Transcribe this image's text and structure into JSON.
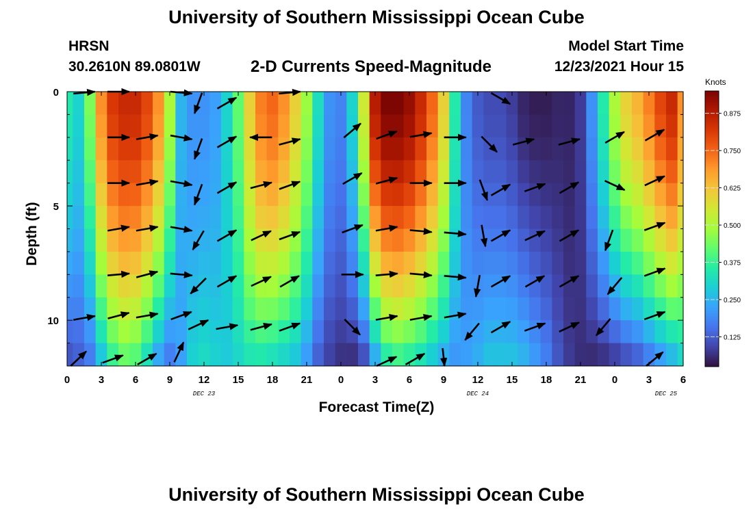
{
  "header": {
    "title": "University of Southern Mississippi Ocean Cube",
    "station": "HRSN",
    "coords": "30.2610N  89.0801W",
    "plot_title": "2-D Currents Speed-Magnitude",
    "model_label": "Model Start Time",
    "model_time": "12/23/2021 Hour 15"
  },
  "footer": {
    "title": "University of Southern Mississippi Ocean Cube"
  },
  "colors": {
    "scale": [
      "#30123b",
      "#4145ab",
      "#4675ed",
      "#39a2fc",
      "#1bcfd4",
      "#24eca6",
      "#61fc6c",
      "#a4fc3b",
      "#d1e834",
      "#f3c63a",
      "#fe9b2d",
      "#f36315",
      "#d93806",
      "#b11901",
      "#7a0402"
    ]
  },
  "chart_data": {
    "type": "heatmap",
    "title": "2-D Currents Speed-Magnitude",
    "xlabel": "Forecast Time(Z)",
    "ylabel": "Depth (ft)",
    "x_tick_labels": [
      "0",
      "3",
      "6",
      "9",
      "12",
      "15",
      "18",
      "21",
      "0",
      "3",
      "6",
      "9",
      "12",
      "15",
      "18",
      "21",
      "0",
      "3",
      "6"
    ],
    "x_start_hour": 0,
    "x_end_hour": 54,
    "date_labels": [
      {
        "label": "DEC 23",
        "hour": 12
      },
      {
        "label": "DEC 24",
        "hour": 36
      },
      {
        "label": "DEC 25",
        "hour": 52.5
      }
    ],
    "y_tick_labels": [
      "0",
      "5",
      "10"
    ],
    "y_range_ft": [
      0,
      12
    ],
    "colorbar": {
      "units": "Knots",
      "range": [
        0.025,
        0.95
      ],
      "tick_labels": [
        "0.875",
        "0.750",
        "0.625",
        "0.500",
        "0.375",
        "0.250",
        "0.125"
      ],
      "tick_values": [
        0.875,
        0.75,
        0.625,
        0.5,
        0.375,
        0.25,
        0.125
      ]
    },
    "depth_rows_ft": [
      0.5,
      1.5,
      2.5,
      3.5,
      4.5,
      5.5,
      6.5,
      7.5,
      8.5,
      9.5,
      10.5,
      11.5
    ],
    "speed_profile_hours": [
      0,
      1,
      2,
      3,
      4,
      5,
      6,
      7,
      8,
      9,
      10,
      11,
      12,
      13,
      14,
      15,
      16,
      17,
      18,
      19,
      20,
      21,
      22,
      23,
      24,
      25,
      26,
      27,
      28,
      29,
      30,
      31,
      32,
      33,
      34,
      35,
      36,
      37,
      38,
      39,
      40,
      41,
      42,
      43,
      44,
      45,
      46,
      47,
      48,
      49,
      50,
      51,
      52,
      53,
      54
    ],
    "speed_surface_knots": [
      0.35,
      0.3,
      0.45,
      0.7,
      0.82,
      0.85,
      0.85,
      0.8,
      0.7,
      0.5,
      0.25,
      0.2,
      0.2,
      0.22,
      0.3,
      0.42,
      0.6,
      0.72,
      0.75,
      0.7,
      0.6,
      0.48,
      0.32,
      0.2,
      0.18,
      0.3,
      0.55,
      0.88,
      0.95,
      0.95,
      0.92,
      0.85,
      0.75,
      0.6,
      0.35,
      0.18,
      0.12,
      0.1,
      0.1,
      0.08,
      0.05,
      0.04,
      0.04,
      0.05,
      0.05,
      0.08,
      0.2,
      0.35,
      0.5,
      0.6,
      0.65,
      0.72,
      0.8,
      0.85,
      0.7
    ],
    "speed_bottom_knots": [
      0.1,
      0.12,
      0.15,
      0.25,
      0.35,
      0.4,
      0.38,
      0.3,
      0.2,
      0.15,
      0.22,
      0.3,
      0.32,
      0.3,
      0.28,
      0.3,
      0.32,
      0.32,
      0.3,
      0.28,
      0.26,
      0.2,
      0.12,
      0.08,
      0.06,
      0.05,
      0.08,
      0.2,
      0.32,
      0.35,
      0.33,
      0.3,
      0.26,
      0.22,
      0.2,
      0.22,
      0.25,
      0.28,
      0.28,
      0.28,
      0.26,
      0.22,
      0.18,
      0.12,
      0.08,
      0.06,
      0.05,
      0.05,
      0.06,
      0.08,
      0.1,
      0.14,
      0.18,
      0.22,
      0.28
    ],
    "arrows": [
      {
        "hour": 1.5,
        "depth_ft": 0,
        "dir_deg": 80
      },
      {
        "hour": 4.5,
        "depth_ft": 0,
        "dir_deg": 90
      },
      {
        "hour": 10,
        "depth_ft": 0,
        "dir_deg": 100
      },
      {
        "hour": 11.5,
        "depth_ft": 0.5,
        "dir_deg": 200
      },
      {
        "hour": 14,
        "depth_ft": 0.5,
        "dir_deg": 60
      },
      {
        "hour": 19.5,
        "depth_ft": 0,
        "dir_deg": 80
      },
      {
        "hour": 38,
        "depth_ft": 0.3,
        "dir_deg": 120
      },
      {
        "hour": 4.5,
        "depth_ft": 2,
        "dir_deg": 90
      },
      {
        "hour": 7,
        "depth_ft": 2,
        "dir_deg": 80
      },
      {
        "hour": 10,
        "depth_ft": 2,
        "dir_deg": 100
      },
      {
        "hour": 11.5,
        "depth_ft": 2.5,
        "dir_deg": 200
      },
      {
        "hour": 14,
        "depth_ft": 2.2,
        "dir_deg": 60
      },
      {
        "hour": 17,
        "depth_ft": 2,
        "dir_deg": 270
      },
      {
        "hour": 19.5,
        "depth_ft": 2.2,
        "dir_deg": 75
      },
      {
        "hour": 25,
        "depth_ft": 1.7,
        "dir_deg": 50
      },
      {
        "hour": 28,
        "depth_ft": 1.9,
        "dir_deg": 70
      },
      {
        "hour": 31,
        "depth_ft": 1.9,
        "dir_deg": 80
      },
      {
        "hour": 34,
        "depth_ft": 2,
        "dir_deg": 90
      },
      {
        "hour": 37,
        "depth_ft": 2.3,
        "dir_deg": 135
      },
      {
        "hour": 40,
        "depth_ft": 2.2,
        "dir_deg": 75
      },
      {
        "hour": 44,
        "depth_ft": 2.2,
        "dir_deg": 75
      },
      {
        "hour": 48,
        "depth_ft": 2,
        "dir_deg": 60
      },
      {
        "hour": 51.5,
        "depth_ft": 1.9,
        "dir_deg": 60
      },
      {
        "hour": 4.5,
        "depth_ft": 4,
        "dir_deg": 90
      },
      {
        "hour": 7,
        "depth_ft": 4,
        "dir_deg": 80
      },
      {
        "hour": 10,
        "depth_ft": 4,
        "dir_deg": 100
      },
      {
        "hour": 11.5,
        "depth_ft": 4.5,
        "dir_deg": 200
      },
      {
        "hour": 14,
        "depth_ft": 4.2,
        "dir_deg": 60
      },
      {
        "hour": 17,
        "depth_ft": 4.1,
        "dir_deg": 75
      },
      {
        "hour": 19.5,
        "depth_ft": 4.1,
        "dir_deg": 70
      },
      {
        "hour": 25,
        "depth_ft": 3.8,
        "dir_deg": 60
      },
      {
        "hour": 28,
        "depth_ft": 3.9,
        "dir_deg": 75
      },
      {
        "hour": 31,
        "depth_ft": 4,
        "dir_deg": 90
      },
      {
        "hour": 34,
        "depth_ft": 4,
        "dir_deg": 90
      },
      {
        "hour": 36.5,
        "depth_ft": 4.3,
        "dir_deg": 160
      },
      {
        "hour": 38,
        "depth_ft": 4.3,
        "dir_deg": 60
      },
      {
        "hour": 41,
        "depth_ft": 4.2,
        "dir_deg": 70
      },
      {
        "hour": 44,
        "depth_ft": 4.2,
        "dir_deg": 60
      },
      {
        "hour": 48,
        "depth_ft": 4.1,
        "dir_deg": 115
      },
      {
        "hour": 51.5,
        "depth_ft": 3.9,
        "dir_deg": 65
      },
      {
        "hour": 4.5,
        "depth_ft": 6,
        "dir_deg": 80
      },
      {
        "hour": 7,
        "depth_ft": 6,
        "dir_deg": 80
      },
      {
        "hour": 10,
        "depth_ft": 6,
        "dir_deg": 100
      },
      {
        "hour": 11.5,
        "depth_ft": 6.5,
        "dir_deg": 210
      },
      {
        "hour": 14,
        "depth_ft": 6.3,
        "dir_deg": 60
      },
      {
        "hour": 17,
        "depth_ft": 6.3,
        "dir_deg": 65
      },
      {
        "hour": 19.5,
        "depth_ft": 6.3,
        "dir_deg": 70
      },
      {
        "hour": 25,
        "depth_ft": 6,
        "dir_deg": 70
      },
      {
        "hour": 28,
        "depth_ft": 6,
        "dir_deg": 80
      },
      {
        "hour": 31,
        "depth_ft": 6.1,
        "dir_deg": 95
      },
      {
        "hour": 34,
        "depth_ft": 6.2,
        "dir_deg": 95
      },
      {
        "hour": 36.5,
        "depth_ft": 6.3,
        "dir_deg": 170
      },
      {
        "hour": 38,
        "depth_ft": 6.3,
        "dir_deg": 60
      },
      {
        "hour": 41,
        "depth_ft": 6.3,
        "dir_deg": 65
      },
      {
        "hour": 44,
        "depth_ft": 6.3,
        "dir_deg": 60
      },
      {
        "hour": 47.5,
        "depth_ft": 6.5,
        "dir_deg": 200
      },
      {
        "hour": 51.5,
        "depth_ft": 5.9,
        "dir_deg": 70
      },
      {
        "hour": 4.5,
        "depth_ft": 8,
        "dir_deg": 85
      },
      {
        "hour": 7,
        "depth_ft": 8,
        "dir_deg": 75
      },
      {
        "hour": 10,
        "depth_ft": 8,
        "dir_deg": 95
      },
      {
        "hour": 11.5,
        "depth_ft": 8.5,
        "dir_deg": 225
      },
      {
        "hour": 14,
        "depth_ft": 8.3,
        "dir_deg": 60
      },
      {
        "hour": 17,
        "depth_ft": 8.3,
        "dir_deg": 65
      },
      {
        "hour": 19.5,
        "depth_ft": 8.3,
        "dir_deg": 60
      },
      {
        "hour": 25,
        "depth_ft": 8,
        "dir_deg": 90
      },
      {
        "hour": 28,
        "depth_ft": 8,
        "dir_deg": 85
      },
      {
        "hour": 31,
        "depth_ft": 8,
        "dir_deg": 95
      },
      {
        "hour": 34,
        "depth_ft": 8.1,
        "dir_deg": 95
      },
      {
        "hour": 36,
        "depth_ft": 8.5,
        "dir_deg": 190
      },
      {
        "hour": 38,
        "depth_ft": 8.3,
        "dir_deg": 60
      },
      {
        "hour": 41,
        "depth_ft": 8.3,
        "dir_deg": 60
      },
      {
        "hour": 44,
        "depth_ft": 8.3,
        "dir_deg": 60
      },
      {
        "hour": 48,
        "depth_ft": 8.5,
        "dir_deg": 220
      },
      {
        "hour": 51.5,
        "depth_ft": 7.9,
        "dir_deg": 70
      },
      {
        "hour": 1.5,
        "depth_ft": 9.9,
        "dir_deg": 80
      },
      {
        "hour": 4.5,
        "depth_ft": 9.8,
        "dir_deg": 75
      },
      {
        "hour": 7,
        "depth_ft": 9.8,
        "dir_deg": 80
      },
      {
        "hour": 10,
        "depth_ft": 9.8,
        "dir_deg": 70
      },
      {
        "hour": 11.5,
        "depth_ft": 10.2,
        "dir_deg": 65
      },
      {
        "hour": 14,
        "depth_ft": 10.3,
        "dir_deg": 80
      },
      {
        "hour": 17,
        "depth_ft": 10.3,
        "dir_deg": 75
      },
      {
        "hour": 19.5,
        "depth_ft": 10.3,
        "dir_deg": 70
      },
      {
        "hour": 25,
        "depth_ft": 10.3,
        "dir_deg": 135
      },
      {
        "hour": 28,
        "depth_ft": 9.9,
        "dir_deg": 80
      },
      {
        "hour": 31,
        "depth_ft": 9.9,
        "dir_deg": 80
      },
      {
        "hour": 34,
        "depth_ft": 9.8,
        "dir_deg": 80
      },
      {
        "hour": 35.5,
        "depth_ft": 10.5,
        "dir_deg": 220
      },
      {
        "hour": 38,
        "depth_ft": 10.3,
        "dir_deg": 60
      },
      {
        "hour": 41,
        "depth_ft": 10.3,
        "dir_deg": 70
      },
      {
        "hour": 44,
        "depth_ft": 10.3,
        "dir_deg": 65
      },
      {
        "hour": 47,
        "depth_ft": 10.3,
        "dir_deg": 220
      },
      {
        "hour": 51.5,
        "depth_ft": 9.8,
        "dir_deg": 70
      },
      {
        "hour": 1,
        "depth_ft": 11.7,
        "dir_deg": 45
      },
      {
        "hour": 4,
        "depth_ft": 11.7,
        "dir_deg": 70
      },
      {
        "hour": 7,
        "depth_ft": 11.7,
        "dir_deg": 60
      },
      {
        "hour": 9.8,
        "depth_ft": 11.4,
        "dir_deg": 25
      },
      {
        "hour": 28,
        "depth_ft": 11.8,
        "dir_deg": 65
      },
      {
        "hour": 30.5,
        "depth_ft": 11.7,
        "dir_deg": 60
      },
      {
        "hour": 33,
        "depth_ft": 11.7,
        "dir_deg": 175
      },
      {
        "hour": 51.5,
        "depth_ft": 11.7,
        "dir_deg": 50
      }
    ]
  }
}
